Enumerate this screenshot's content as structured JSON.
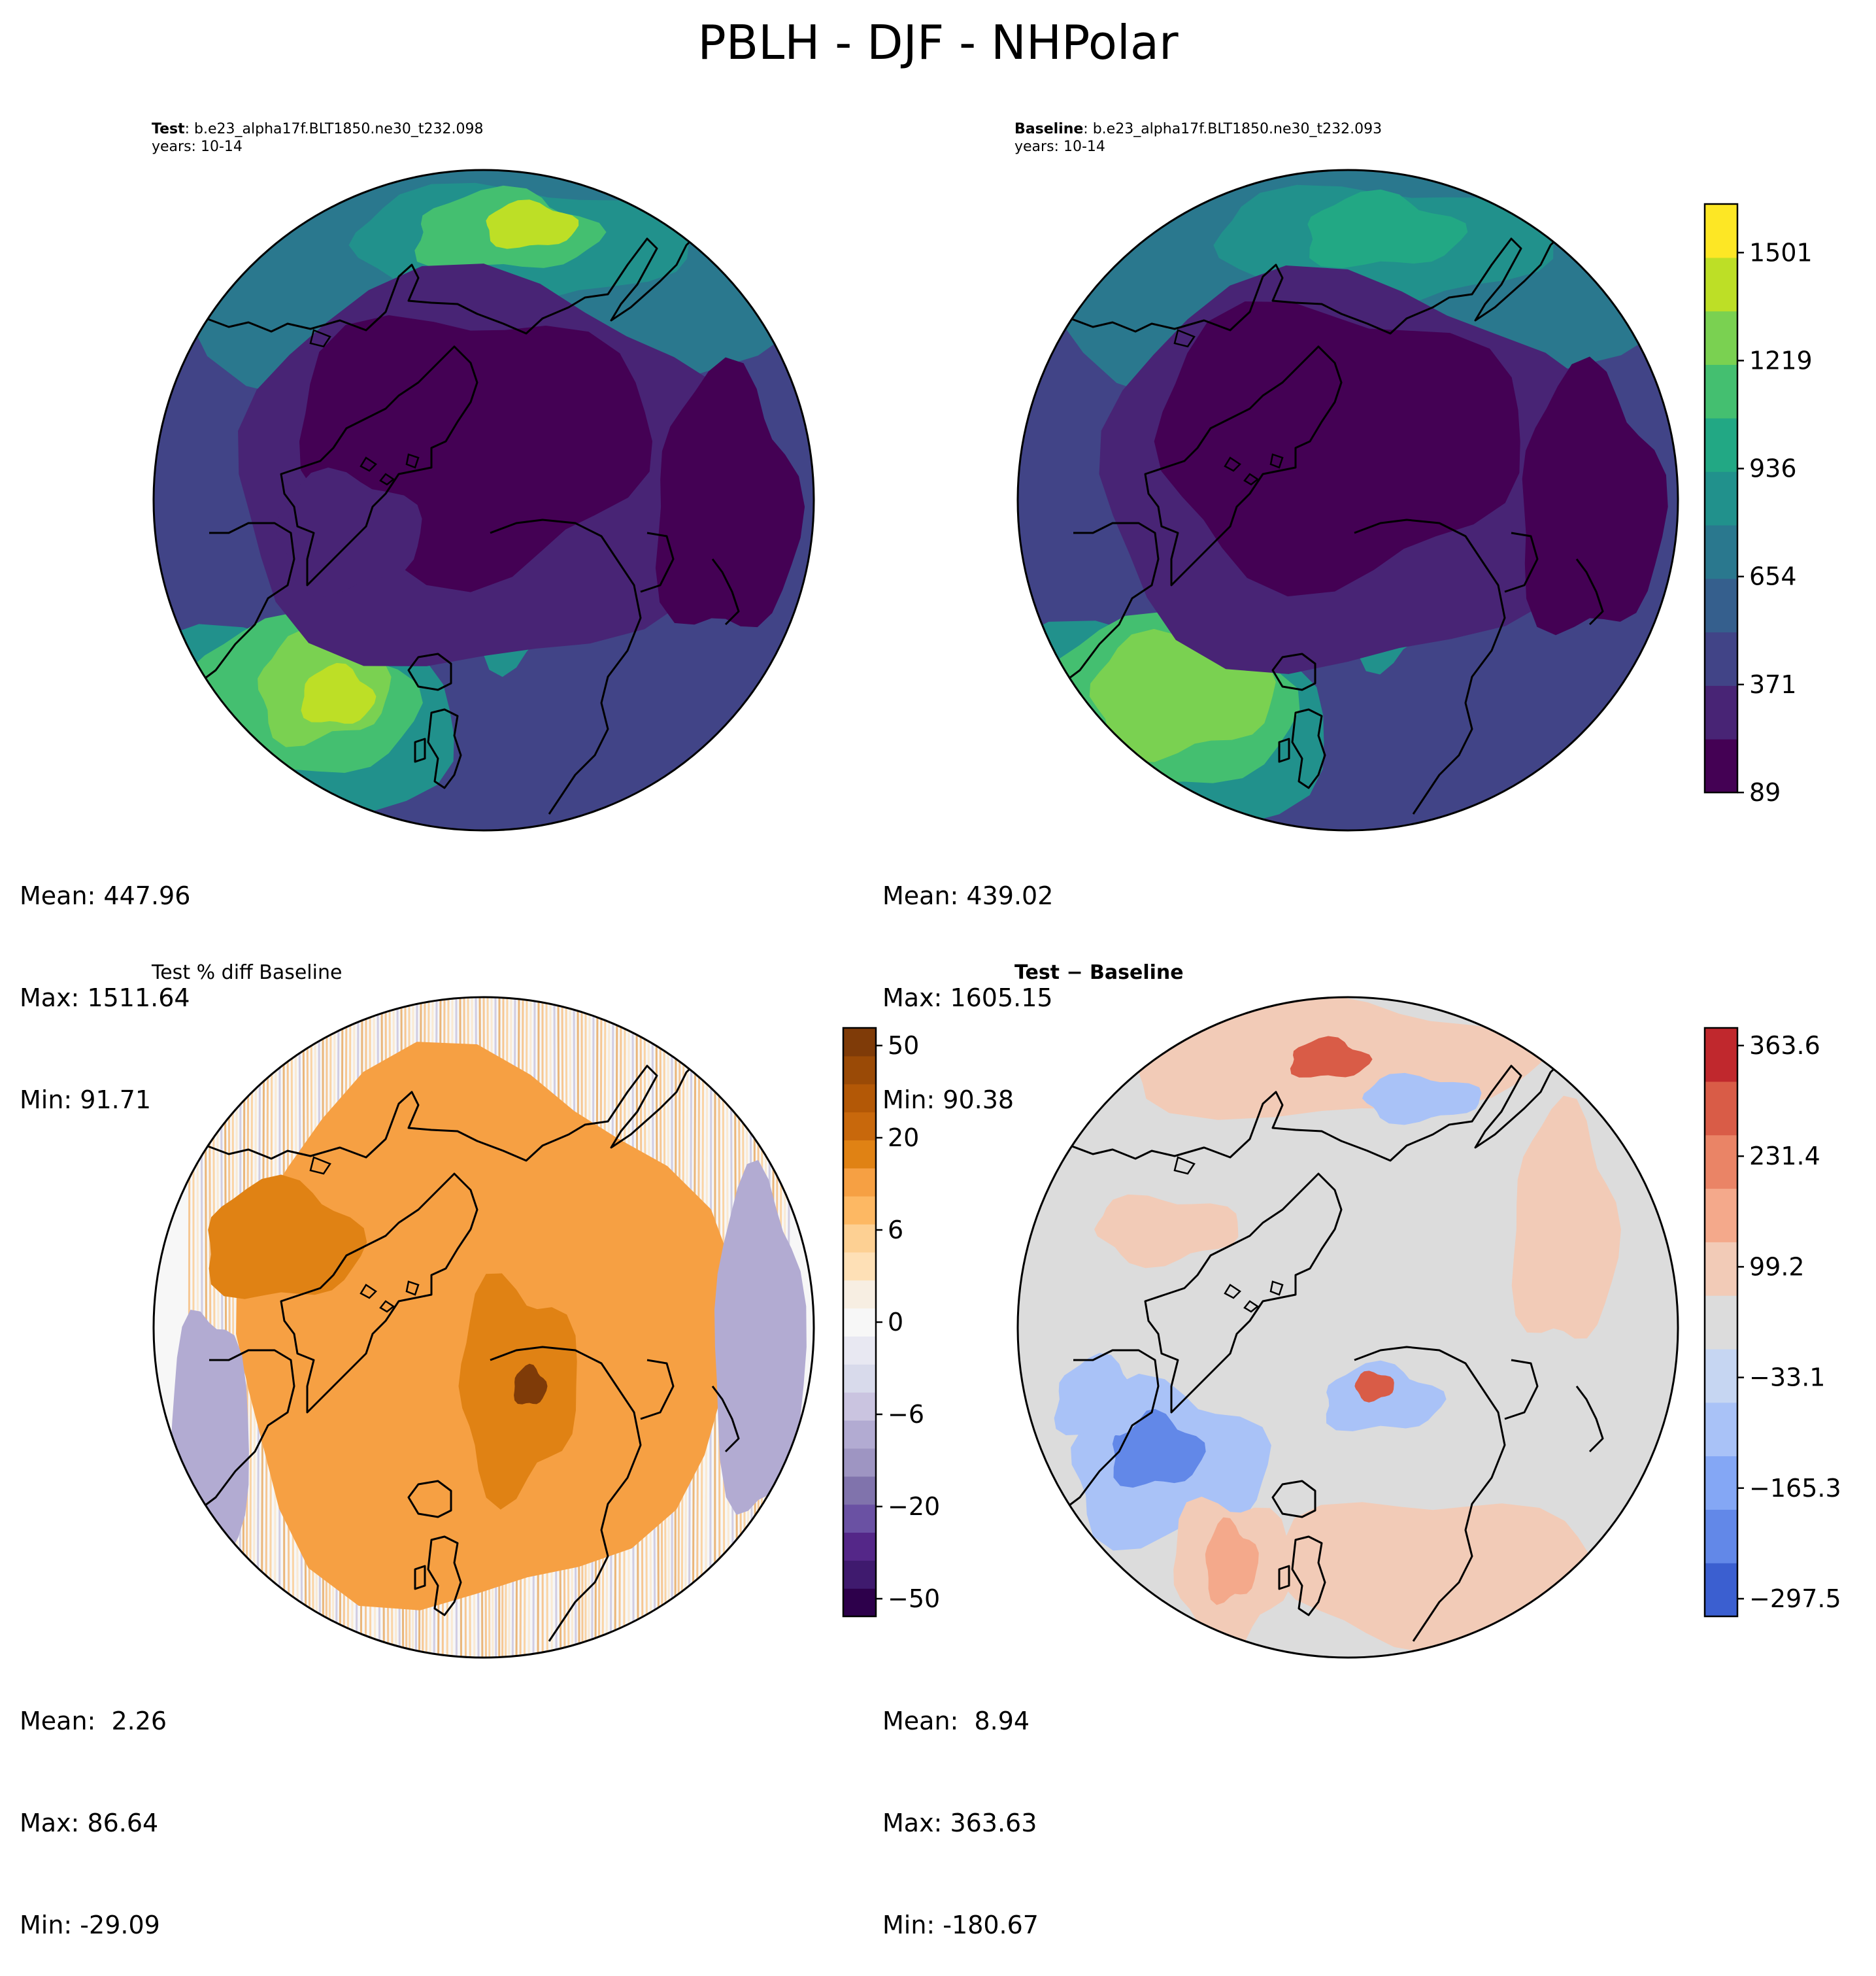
{
  "suptitle": "PBLH - DJF - NHPolar",
  "panels": {
    "test": {
      "label": "Test",
      "case": ": b.e23_alpha17f.BLT1850.ne30_t232.098",
      "years": "years: 10-14",
      "stats": [
        "Mean: 447.96",
        "Max: 1511.64",
        "Min: 91.71"
      ]
    },
    "baseline": {
      "label": "Baseline",
      "case": ": b.e23_alpha17f.BLT1850.ne30_t232.093",
      "years": "years: 10-14",
      "stats": [
        "Mean: 439.02",
        "Max: 1605.15",
        "Min: 90.38"
      ]
    },
    "pct_diff": {
      "title": "Test % diff Baseline",
      "stats": [
        "Mean:  2.26",
        "Max: 86.64",
        "Min: -29.09"
      ]
    },
    "diff": {
      "title": "Test − Baseline",
      "stats": [
        "Mean:  8.94",
        "Max: 363.63",
        "Min: -180.67"
      ]
    }
  },
  "colorbars": {
    "top": {
      "ticks": [
        "89",
        "371",
        "654",
        "936",
        "1219",
        "1501"
      ],
      "colors": [
        "#440154",
        "#482475",
        "#414487",
        "#355f8d",
        "#2a788e",
        "#21918c",
        "#22a884",
        "#44bf70",
        "#7ad151",
        "#bddf26",
        "#fde725"
      ]
    },
    "pct": {
      "ticks": [
        "−50",
        "−20",
        "−6",
        "0",
        "6",
        "20",
        "50"
      ],
      "colors": [
        "#2d004b",
        "#3f1a6e",
        "#542788",
        "#6a51a3",
        "#8073ac",
        "#9e95c2",
        "#b2abd2",
        "#cac4e0",
        "#d8daeb",
        "#e8e8f2",
        "#f7f7f7",
        "#f7eee2",
        "#fee0b6",
        "#fdd093",
        "#fdb863",
        "#f6a043",
        "#e08214",
        "#c8680c",
        "#b35806",
        "#9a4a06",
        "#7f3b08"
      ]
    },
    "diff": {
      "ticks": [
        "−297.5",
        "−165.3",
        "−33.1",
        "99.2",
        "231.4",
        "363.6"
      ],
      "colors": [
        "#3b5fd0",
        "#6288e8",
        "#84a7f5",
        "#a9c2f7",
        "#c6d6f2",
        "#dcdcdc",
        "#f2cbb7",
        "#f4a98b",
        "#ea8466",
        "#d95c47",
        "#c0282d"
      ]
    }
  },
  "maps": {
    "test_colors": [
      "#440154",
      "#482475",
      "#414487",
      "#355f8d",
      "#2a788e",
      "#21918c",
      "#22a884",
      "#44bf70",
      "#7ad151",
      "#bddf26"
    ],
    "pct_colors": [
      "#f6a043",
      "#fdb863",
      "#fee0b6",
      "#b2abd2",
      "#e08214"
    ],
    "diff_colors": [
      "#dcdcdc",
      "#f2cbb7",
      "#f4a98b",
      "#a9c2f7",
      "#6288e8",
      "#d95c47"
    ]
  }
}
